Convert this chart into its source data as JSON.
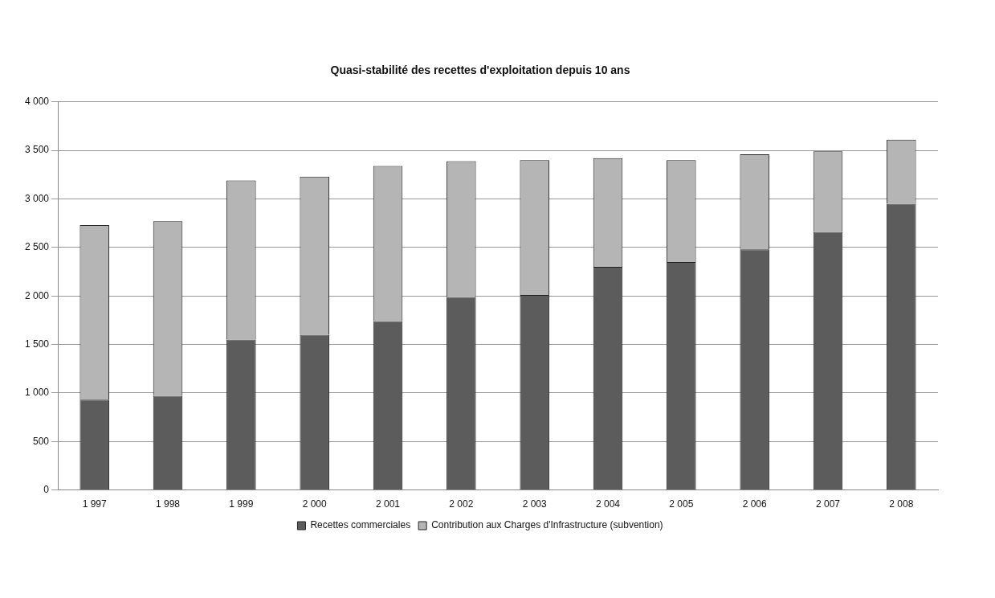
{
  "chart_data": {
    "type": "bar",
    "title": "Quasi-stabilité des recettes d'exploitation depuis 10 ans",
    "categories": [
      "1 997",
      "1 998",
      "1 999",
      "2 000",
      "2 001",
      "2 002",
      "2 003",
      "2 004",
      "2 005",
      "2 006",
      "2 007",
      "2 008"
    ],
    "series": [
      {
        "name": "Recettes commerciales",
        "color": "#5c5c5c",
        "values": [
          930,
          970,
          1550,
          1600,
          1740,
          1990,
          2010,
          2300,
          2350,
          2480,
          2660,
          2950
        ]
      },
      {
        "name": "Contribution aux Charges d'Infrastructure (subvention)",
        "color": "#b5b5b5",
        "values": [
          1800,
          1800,
          1640,
          1630,
          1600,
          1400,
          1390,
          1120,
          1050,
          980,
          830,
          660
        ]
      }
    ],
    "stacked": true,
    "ylim": [
      0,
      4000
    ],
    "yticks": [
      {
        "value": 0,
        "label": "0"
      },
      {
        "value": 500,
        "label": "500"
      },
      {
        "value": 1000,
        "label": "1 000"
      },
      {
        "value": 1500,
        "label": "1 500"
      },
      {
        "value": 2000,
        "label": "2 000"
      },
      {
        "value": 2500,
        "label": "2 500"
      },
      {
        "value": 3000,
        "label": "3 000"
      },
      {
        "value": 3500,
        "label": "3 500"
      },
      {
        "value": 4000,
        "label": "4 000"
      }
    ],
    "grid": "y",
    "legend": "bottom"
  }
}
